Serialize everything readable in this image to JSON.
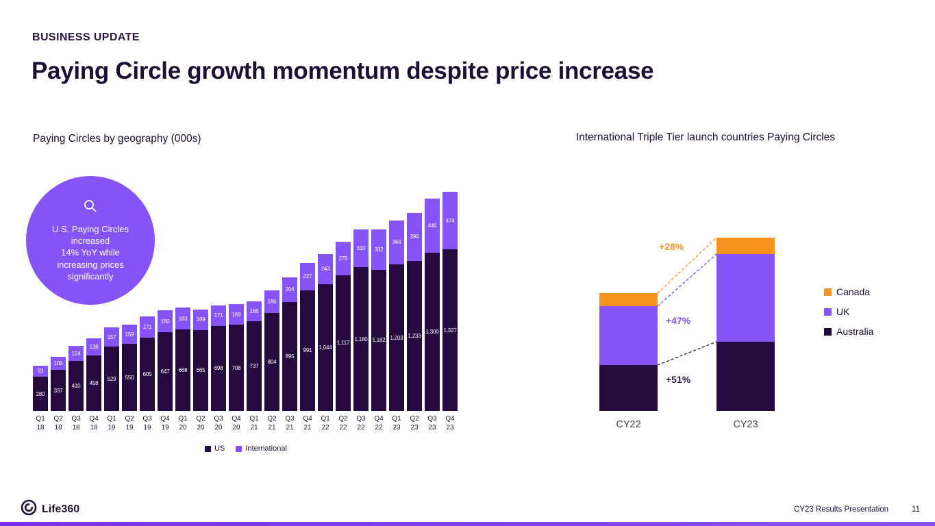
{
  "slide": {
    "eyebrow": "BUSINESS UPDATE",
    "title": "Paying Circle growth momentum despite price increase"
  },
  "callout": {
    "lines": [
      "U.S. Paying Circles",
      "increased",
      "14% YoY while",
      "increasing prices",
      "significantly"
    ]
  },
  "chart_data": [
    {
      "type": "bar",
      "stacked": true,
      "title": "Paying Circles by geography (000s)",
      "categories": [
        "Q1 18",
        "Q2 18",
        "Q3 18",
        "Q4 18",
        "Q1 19",
        "Q2 19",
        "Q3 19",
        "Q4 19",
        "Q1 20",
        "Q2 20",
        "Q3 20",
        "Q4 20",
        "Q1 21",
        "Q2 21",
        "Q3 21",
        "Q4 21",
        "Q1 22",
        "Q2 22",
        "Q3 22",
        "Q4 22",
        "Q1 23",
        "Q2 23",
        "Q3 23",
        "Q4 23"
      ],
      "series": [
        {
          "name": "US",
          "color": "#250a40",
          "values": [
            280,
            337,
            410,
            458,
            529,
            550,
            605,
            647,
            668,
            665,
            698,
            708,
            737,
            804,
            895,
            991,
            1044,
            1117,
            1180,
            1162,
            1203,
            1233,
            1300,
            1327
          ]
        },
        {
          "name": "International",
          "color": "#8653f7",
          "values": [
            93,
            109,
            124,
            138,
            157,
            159,
            171,
            180,
            183,
            169,
            171,
            169,
            166,
            186,
            204,
            227,
            243,
            275,
            310,
            332,
            364,
            396,
            446,
            474
          ]
        }
      ],
      "ylim": [
        0,
        1801
      ],
      "grid": false,
      "legend_position": "bottom",
      "value_labels": true
    },
    {
      "type": "bar",
      "stacked": true,
      "title": "International Triple Tier launch countries Paying Circles",
      "categories": [
        "CY22",
        "CY23"
      ],
      "series": [
        {
          "name": "Australia",
          "color": "#250a40",
          "values": [
            67,
            101
          ]
        },
        {
          "name": "UK",
          "color": "#8653f7",
          "values": [
            86,
            128
          ]
        },
        {
          "name": "Canada",
          "color": "#f7941d",
          "values": [
            19,
            24
          ]
        }
      ],
      "growth_labels": [
        {
          "series": "Canada",
          "label": "+28%",
          "color": "#f7941d"
        },
        {
          "series": "UK",
          "label": "+47%",
          "color": "#7d4df2"
        },
        {
          "series": "Australia",
          "label": "+51%",
          "color": "#2b1b4e"
        }
      ],
      "grid": false,
      "legend_position": "right",
      "value_labels": false
    }
  ],
  "footer": {
    "brand": "Life360",
    "presentation": "CY23 Results Presentation",
    "page": "11"
  },
  "colors": {
    "accent_purple": "#8653f7",
    "dark_purple": "#250a40",
    "orange": "#f7941d",
    "heading": "#1e0e33",
    "bottom_bar": "#7b2ff7"
  }
}
